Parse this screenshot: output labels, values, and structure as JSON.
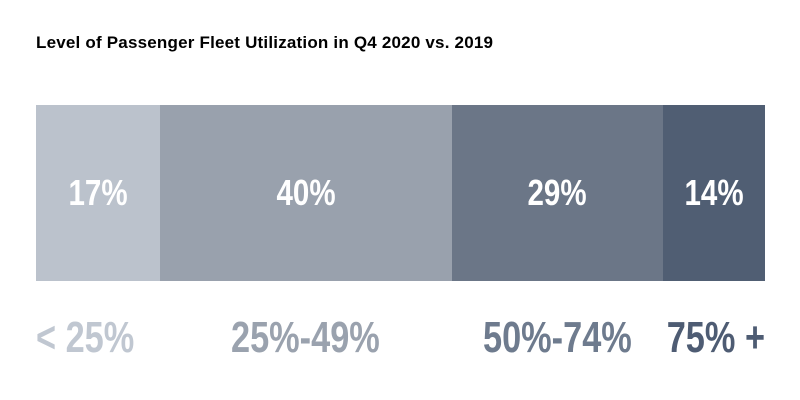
{
  "title": "Level of Passenger Fleet Utilization in Q4 2020 vs. 2019",
  "background": "#ffffff",
  "title_color": "#000000",
  "value_label_color": "#ffffff",
  "chart_data": {
    "type": "bar",
    "variant": "horizontal-stacked-100-percent",
    "title": "Level of Passenger Fleet Utilization in Q4 2020 vs. 2019",
    "unit": "percent",
    "categories": [
      "< 25%",
      "25%-49%",
      "50%-74%",
      "75% +"
    ],
    "values": [
      17,
      40,
      29,
      14
    ],
    "grid": false,
    "legend_position": "none",
    "segments": [
      {
        "category": "< 25%",
        "value": 17,
        "display": "17%",
        "color": "#bbc2cc",
        "label_color": "#c0c7d1"
      },
      {
        "category": "25%-49%",
        "value": 40,
        "display": "40%",
        "color": "#99a1ad",
        "label_color": "#9aa2ae"
      },
      {
        "category": "50%-74%",
        "value": 29,
        "display": "29%",
        "color": "#6b7687",
        "label_color": "#6e7b8e"
      },
      {
        "category": "75% +",
        "value": 14,
        "display": "14%",
        "color": "#505e73",
        "label_color": "#4e5c73"
      }
    ]
  }
}
